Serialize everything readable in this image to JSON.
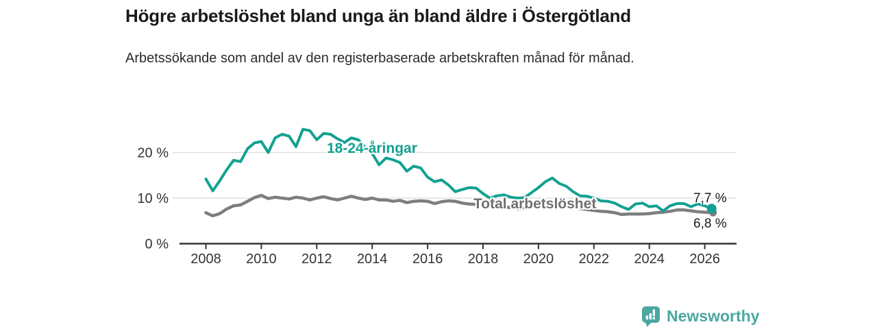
{
  "title": "Högre arbetslöshet bland unga än bland äldre i Östergötland",
  "subtitle": "Arbetssökande som andel av den registerbaserade arbetskraften månad för månad.",
  "branding": {
    "name": "Newsworthy",
    "logo_icon": "bar-chart-speech-bubble-icon",
    "color": "#4BA7A0"
  },
  "colors": {
    "youth_line": "#12A191",
    "total_line": "#7E7E7E",
    "axis": "#333333",
    "gridline": "#DBDBDB",
    "tick_label": "#333333",
    "value_label": "#1a1a1a"
  },
  "chart_data": {
    "type": "line",
    "title": "Högre arbetslöshet bland unga än bland äldre i Östergötland",
    "subtitle": "Arbetssökande som andel av den registerbaserade arbetskraften månad för månad.",
    "unit": "%",
    "x_start": 2008,
    "x_step_years": 0.25,
    "xlim": [
      2007,
      2027.2
    ],
    "ylim": [
      0,
      27
    ],
    "grid": "horizontal",
    "legend_position": "inline-labels",
    "x_ticks": [
      2008,
      2010,
      2012,
      2014,
      2016,
      2018,
      2020,
      2022,
      2024,
      2026
    ],
    "y_ticks": [
      {
        "value": 0,
        "label": "0 %"
      },
      {
        "value": 10,
        "label": "10 %"
      },
      {
        "value": 20,
        "label": "20 %"
      }
    ],
    "series": [
      {
        "name": "18-24-åringar",
        "color": "#12A191",
        "end_label": "7,7 %",
        "end_value": 7.7,
        "values": [
          14.2,
          11.6,
          13.8,
          16.2,
          18.3,
          18.0,
          20.8,
          22.1,
          22.4,
          20.0,
          23.2,
          24.0,
          23.6,
          21.3,
          25.1,
          24.8,
          22.8,
          24.2,
          24.0,
          23.0,
          22.2,
          23.2,
          22.8,
          21.0,
          19.8,
          17.3,
          18.8,
          18.4,
          17.8,
          15.9,
          17.0,
          16.6,
          14.6,
          13.6,
          14.0,
          12.9,
          11.4,
          11.9,
          12.3,
          12.2,
          11.0,
          10.0,
          10.5,
          10.7,
          10.2,
          10.0,
          10.1,
          11.2,
          12.3,
          13.6,
          14.4,
          13.2,
          12.6,
          11.4,
          10.5,
          10.4,
          10.0,
          9.4,
          9.3,
          8.9,
          8.1,
          7.5,
          8.7,
          8.9,
          8.1,
          8.3,
          7.2,
          8.3,
          8.8,
          8.8,
          8.1,
          8.7,
          8.3,
          7.7
        ]
      },
      {
        "name": "Total arbetslöshet",
        "color": "#7E7E7E",
        "end_label": "6,8 %",
        "end_value": 6.8,
        "values": [
          6.8,
          6.1,
          6.6,
          7.6,
          8.3,
          8.5,
          9.3,
          10.1,
          10.6,
          9.9,
          10.2,
          10.0,
          9.8,
          10.2,
          10.0,
          9.6,
          10.0,
          10.3,
          9.9,
          9.6,
          10.0,
          10.4,
          10.0,
          9.7,
          10.0,
          9.6,
          9.6,
          9.3,
          9.5,
          9.0,
          9.3,
          9.4,
          9.3,
          8.8,
          9.2,
          9.4,
          9.3,
          8.9,
          8.7,
          8.6,
          8.4,
          8.0,
          8.2,
          8.1,
          7.9,
          7.7,
          7.8,
          8.0,
          8.2,
          8.7,
          8.9,
          8.6,
          8.4,
          8.0,
          7.7,
          7.5,
          7.3,
          7.1,
          7.0,
          6.8,
          6.4,
          6.5,
          6.5,
          6.5,
          6.6,
          6.8,
          6.9,
          7.1,
          7.4,
          7.4,
          7.2,
          7.0,
          6.9,
          6.8
        ]
      }
    ]
  }
}
